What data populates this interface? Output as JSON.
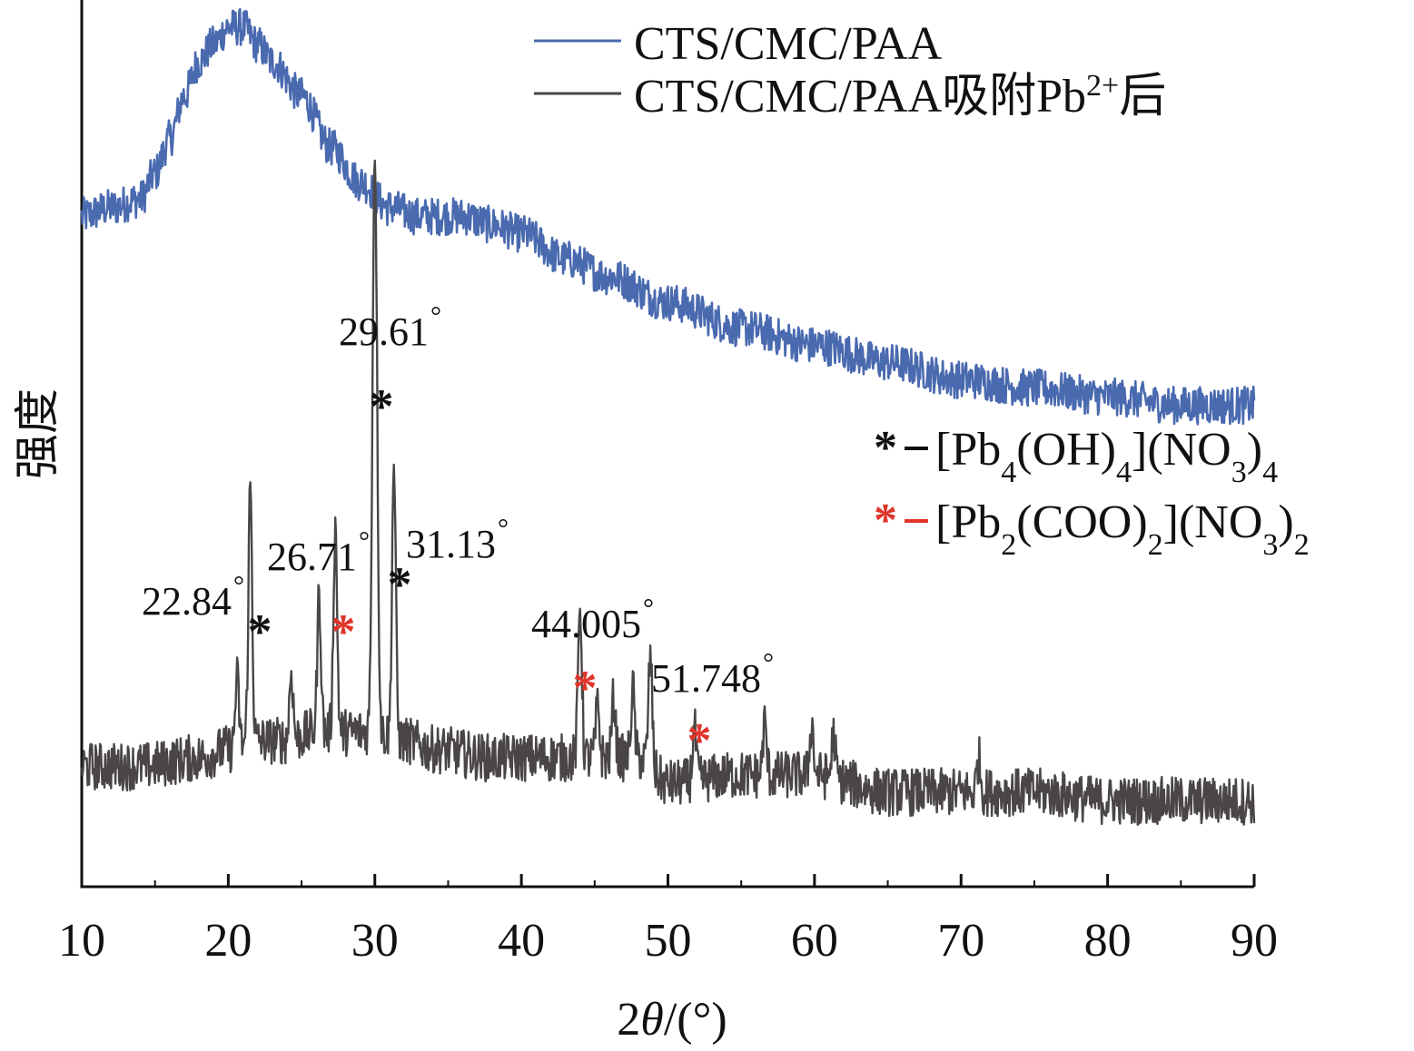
{
  "chart_data": {
    "type": "line",
    "title": "",
    "xlabel_prefix": "2",
    "xlabel_symbol": "θ",
    "xlabel_suffix": "/(°)",
    "ylabel": "强度",
    "xlim": [
      10,
      90
    ],
    "xticks": [
      10,
      20,
      30,
      40,
      50,
      60,
      70,
      80,
      90
    ],
    "y_ticks_shown": false,
    "grid": false,
    "legend_position": "top-right",
    "series": [
      {
        "name": "CTS/CMC/PAA",
        "legend_base": "CTS/CMC/PAA",
        "color": "#4a6ab0",
        "unit_note": "relative intensity (arb.)",
        "profile": [
          [
            10,
            0.78
          ],
          [
            12,
            0.79
          ],
          [
            14,
            0.8
          ],
          [
            15,
            0.83
          ],
          [
            16,
            0.87
          ],
          [
            17,
            0.92
          ],
          [
            18,
            0.96
          ],
          [
            19,
            0.98
          ],
          [
            20,
            1.0
          ],
          [
            21,
            1.0
          ],
          [
            22,
            0.98
          ],
          [
            23,
            0.96
          ],
          [
            25,
            0.92
          ],
          [
            27,
            0.86
          ],
          [
            29,
            0.82
          ],
          [
            31,
            0.79
          ],
          [
            33,
            0.78
          ],
          [
            36,
            0.78
          ],
          [
            38,
            0.77
          ],
          [
            40,
            0.76
          ],
          [
            43,
            0.73
          ],
          [
            46,
            0.71
          ],
          [
            50,
            0.68
          ],
          [
            55,
            0.65
          ],
          [
            60,
            0.63
          ],
          [
            65,
            0.61
          ],
          [
            70,
            0.59
          ],
          [
            75,
            0.58
          ],
          [
            80,
            0.57
          ],
          [
            85,
            0.56
          ],
          [
            90,
            0.56
          ]
        ]
      },
      {
        "name": "CTS/CMC/PAA吸附Pb²⁺后",
        "legend_base": "CTS/CMC/PAA吸附Pb",
        "legend_sup": "2+",
        "legend_tail": "后",
        "color": "#4a4646",
        "unit_note": "relative intensity (arb.)",
        "profile": [
          [
            10,
            0.14
          ],
          [
            14,
            0.14
          ],
          [
            18,
            0.15
          ],
          [
            20,
            0.16
          ],
          [
            22,
            0.17
          ],
          [
            24,
            0.17
          ],
          [
            26,
            0.18
          ],
          [
            28,
            0.18
          ],
          [
            30,
            0.18
          ],
          [
            32,
            0.17
          ],
          [
            34,
            0.16
          ],
          [
            38,
            0.15
          ],
          [
            42,
            0.15
          ],
          [
            46,
            0.15
          ],
          [
            48,
            0.15
          ],
          [
            50,
            0.12
          ],
          [
            55,
            0.13
          ],
          [
            60,
            0.13
          ],
          [
            65,
            0.11
          ],
          [
            70,
            0.11
          ],
          [
            75,
            0.11
          ],
          [
            80,
            0.1
          ],
          [
            85,
            0.1
          ],
          [
            90,
            0.1
          ]
        ],
        "peaks": [
          {
            "x": 20.6,
            "h": 0.08
          },
          {
            "x": 21.5,
            "h": 0.3
          },
          {
            "x": 24.3,
            "h": 0.08
          },
          {
            "x": 26.2,
            "h": 0.16
          },
          {
            "x": 27.3,
            "h": 0.24
          },
          {
            "x": 30.0,
            "h": 0.68
          },
          {
            "x": 31.3,
            "h": 0.32
          },
          {
            "x": 44.0,
            "h": 0.18
          },
          {
            "x": 45.2,
            "h": 0.06
          },
          {
            "x": 46.3,
            "h": 0.07
          },
          {
            "x": 47.6,
            "h": 0.08
          },
          {
            "x": 48.8,
            "h": 0.13
          },
          {
            "x": 51.8,
            "h": 0.06
          },
          {
            "x": 56.6,
            "h": 0.06
          },
          {
            "x": 59.8,
            "h": 0.06
          },
          {
            "x": 61.3,
            "h": 0.05
          },
          {
            "x": 71.2,
            "h": 0.04
          }
        ]
      }
    ],
    "peak_labels": [
      {
        "text": "22.84",
        "x": 22.84,
        "star_color": "#111111"
      },
      {
        "text": "26.71",
        "x": 26.71,
        "star_color": "#e0342a"
      },
      {
        "text": "29.61",
        "x": 29.61,
        "star_color": "#111111"
      },
      {
        "text": "31.13",
        "x": 31.13,
        "star_color": "#111111"
      },
      {
        "text": "44.005",
        "x": 44.005,
        "star_color": "#e0342a"
      },
      {
        "text": "51.748",
        "x": 51.748,
        "star_color": "#e0342a"
      }
    ],
    "degree_symbol": "°",
    "star_symbol": "*",
    "phase_legend": [
      {
        "star_color": "#111111",
        "dash_color": "#111111",
        "text_html": "[Pb<tspan baseline-shift='sub' font-size='34'>4</tspan>(OH)<tspan baseline-shift='sub' font-size='34'>4</tspan>](NO<tspan baseline-shift='sub' font-size='34'>3</tspan>)<tspan baseline-shift='sub' font-size='34'>4</tspan>",
        "text": "[Pb4(OH)4](NO3)4"
      },
      {
        "star_color": "#e0342a",
        "dash_color": "#e0342a",
        "text_html": "[Pb<tspan baseline-shift='sub' font-size='34'>2</tspan>(COO)<tspan baseline-shift='sub' font-size='34'>2</tspan>](NO<tspan baseline-shift='sub' font-size='34'>3</tspan>)<tspan baseline-shift='sub' font-size='34'>2</tspan>",
        "text": "[Pb2(COO)2](NO3)2"
      }
    ]
  }
}
